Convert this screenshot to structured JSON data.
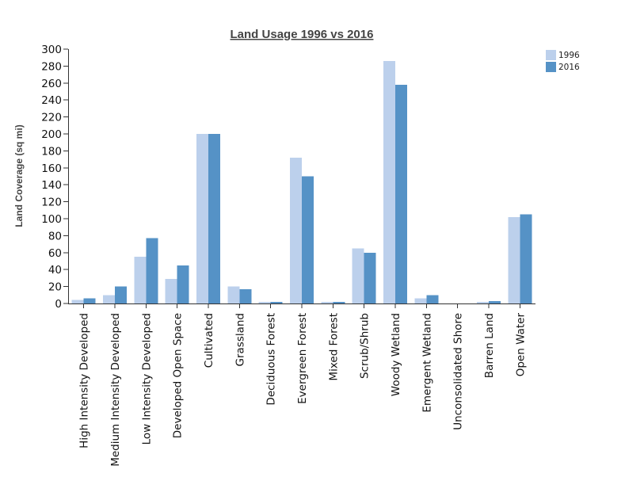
{
  "chart_data": {
    "type": "bar",
    "title": "Land Usage 1996 vs 2016",
    "xlabel": "",
    "ylabel": "Land Coverage (sq mi)",
    "ylim": [
      0,
      300
    ],
    "yticks": [
      0,
      20,
      40,
      60,
      80,
      100,
      120,
      140,
      160,
      180,
      200,
      220,
      240,
      260,
      280,
      300
    ],
    "categories": [
      "High Intensity Developed",
      "Medium Intensity Developed",
      "Low Intensity Developed",
      "Developed Open Space",
      "Cultivated",
      "Grassland",
      "Deciduous Forest",
      "Evergreen Forest",
      "Mixed Forest",
      "Scrub/Shrub",
      "Woody Wetland",
      "Emergent Wetland",
      "Unconsolidated Shore",
      "Barren Land",
      "Open Water"
    ],
    "series": [
      {
        "name": "1996",
        "color": "#bcd0ec",
        "values": [
          4,
          10,
          55,
          29,
          200,
          20,
          2,
          172,
          2,
          65,
          286,
          6,
          0,
          2,
          102
        ]
      },
      {
        "name": "2016",
        "color": "#5592c6",
        "values": [
          6,
          20,
          77,
          45,
          200,
          17,
          2,
          150,
          2,
          60,
          258,
          10,
          0,
          3,
          105
        ]
      }
    ],
    "legend_position": "top-right",
    "grid": false
  }
}
